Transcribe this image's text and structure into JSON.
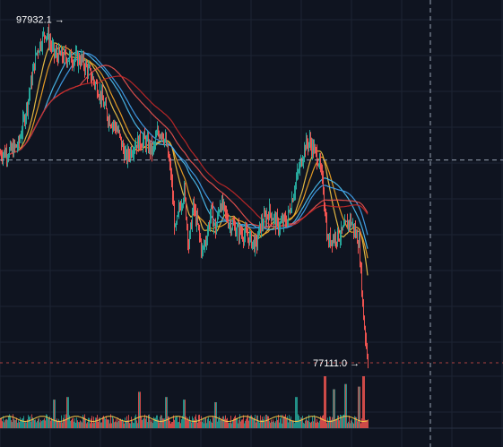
{
  "chart_data": {
    "type": "candlestick",
    "theme": {
      "background": "#0f1420",
      "grid": "#1c2433",
      "up": "#26a69a",
      "down": "#ef5350"
    },
    "annotations": {
      "high_marker": {
        "text": "97932.1 →",
        "value": 97932.1
      },
      "low_marker": {
        "text": "77111.0 →",
        "value": 77111.0
      }
    },
    "crosshair": {
      "price": 89400
    },
    "price_range": [
      76300,
      99100
    ],
    "candle_count": 200,
    "price_path": {
      "description_free_anchor_points": true,
      "anchors": [
        [
          0,
          89800
        ],
        [
          10,
          89900
        ],
        [
          20,
          90300
        ],
        [
          30,
          92800
        ],
        [
          40,
          95900
        ],
        [
          50,
          97200
        ],
        [
          55,
          96600
        ],
        [
          60,
          95800
        ],
        [
          75,
          95600
        ],
        [
          90,
          95500
        ],
        [
          100,
          94600
        ],
        [
          110,
          93600
        ],
        [
          120,
          92000
        ],
        [
          130,
          91300
        ],
        [
          140,
          89500
        ],
        [
          150,
          90400
        ],
        [
          160,
          90600
        ],
        [
          170,
          89900
        ],
        [
          175,
          91000
        ],
        [
          180,
          91200
        ],
        [
          185,
          90300
        ],
        [
          190,
          88600
        ],
        [
          195,
          85000
        ],
        [
          200,
          86600
        ],
        [
          205,
          87500
        ],
        [
          210,
          84200
        ],
        [
          215,
          86600
        ],
        [
          220,
          85400
        ],
        [
          225,
          83800
        ],
        [
          230,
          84800
        ],
        [
          235,
          86300
        ],
        [
          240,
          85100
        ],
        [
          245,
          86900
        ],
        [
          255,
          85600
        ],
        [
          265,
          85100
        ],
        [
          275,
          84800
        ],
        [
          285,
          84200
        ],
        [
          290,
          85400
        ],
        [
          300,
          86300
        ],
        [
          310,
          85400
        ],
        [
          320,
          85800
        ],
        [
          330,
          88200
        ],
        [
          340,
          90300
        ],
        [
          345,
          90500
        ],
        [
          355,
          89400
        ],
        [
          360,
          87700
        ],
        [
          365,
          84400
        ],
        [
          370,
          84700
        ],
        [
          380,
          84900
        ],
        [
          390,
          85800
        ],
        [
          400,
          84400
        ],
        [
          405,
          79900
        ],
        [
          410,
          77111
        ]
      ]
    },
    "moving_averages": [
      {
        "color": "#f7c948",
        "period": 20
      },
      {
        "color": "#f9a825",
        "period": 30
      },
      {
        "color": "#4fc3f7",
        "period": 50
      },
      {
        "color": "#42a5f5",
        "period": 60
      },
      {
        "color": "#ef5350",
        "period": 90
      },
      {
        "color": "#c62828",
        "period": 110
      }
    ],
    "volume": {
      "baseline_ratio": 0.18,
      "spikes": [
        [
          60,
          0.55
        ],
        [
          75,
          0.6
        ],
        [
          155,
          0.7
        ],
        [
          185,
          0.6
        ],
        [
          205,
          0.55
        ],
        [
          240,
          0.5
        ],
        [
          330,
          0.6
        ],
        [
          362,
          1.0
        ],
        [
          372,
          0.75
        ],
        [
          385,
          0.85
        ],
        [
          400,
          0.8
        ],
        [
          405,
          1.0
        ]
      ]
    }
  }
}
